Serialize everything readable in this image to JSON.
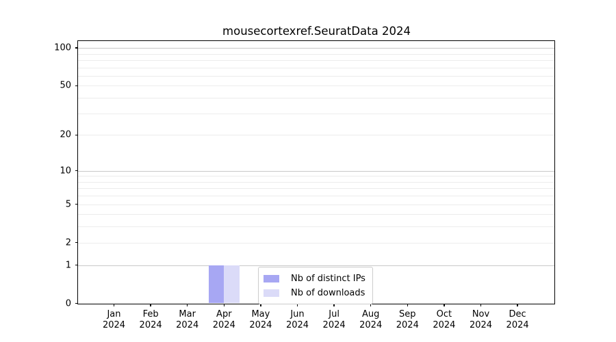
{
  "title": "mousecortexref.SeuratData 2024",
  "colors": {
    "distinct_ips_bar": "#a7a7f3",
    "downloads_bar": "#dbdbf8",
    "major_gridline": "#c8c8c8",
    "minor_gridline": "#ececec",
    "axis": "#000000",
    "legend_border": "#cccccc",
    "background": "#ffffff"
  },
  "chart_data": {
    "type": "bar",
    "title": "mousecortexref.SeuratData 2024",
    "xlabel": "",
    "ylabel": "",
    "year": "2024",
    "months": [
      "Jan",
      "Feb",
      "Mar",
      "Apr",
      "May",
      "Jun",
      "Jul",
      "Aug",
      "Sep",
      "Oct",
      "Nov",
      "Dec"
    ],
    "categories": [
      "Jan 2024",
      "Feb 2024",
      "Mar 2024",
      "Apr 2024",
      "May 2024",
      "Jun 2024",
      "Jul 2024",
      "Aug 2024",
      "Sep 2024",
      "Oct 2024",
      "Nov 2024",
      "Dec 2024"
    ],
    "series": [
      {
        "name": "Nb of distinct IPs",
        "color": "#a7a7f3",
        "values": [
          0,
          0,
          0,
          1,
          0,
          0,
          0,
          0,
          0,
          0,
          0,
          0
        ]
      },
      {
        "name": "Nb of downloads",
        "color": "#dbdbf8",
        "values": [
          0,
          0,
          0,
          1,
          0,
          0,
          0,
          0,
          0,
          0,
          0,
          0
        ]
      }
    ],
    "y_scale": "log10(1+v)",
    "y_tick_values": [
      0,
      1,
      2,
      5,
      10,
      20,
      50,
      100
    ],
    "y_tick_labels": [
      "0",
      "1",
      "2",
      "5",
      "10",
      "20",
      "50",
      "100"
    ],
    "y_major_gridlines": [
      1,
      10,
      100
    ],
    "y_minor_gridlines": [
      2,
      3,
      4,
      5,
      6,
      7,
      8,
      9,
      20,
      30,
      40,
      50,
      60,
      70,
      80,
      90
    ],
    "ylim": [
      0,
      115
    ],
    "grid": true,
    "legend_position": "lower center",
    "legend_entries": [
      "Nb of distinct IPs",
      "Nb of downloads"
    ]
  }
}
